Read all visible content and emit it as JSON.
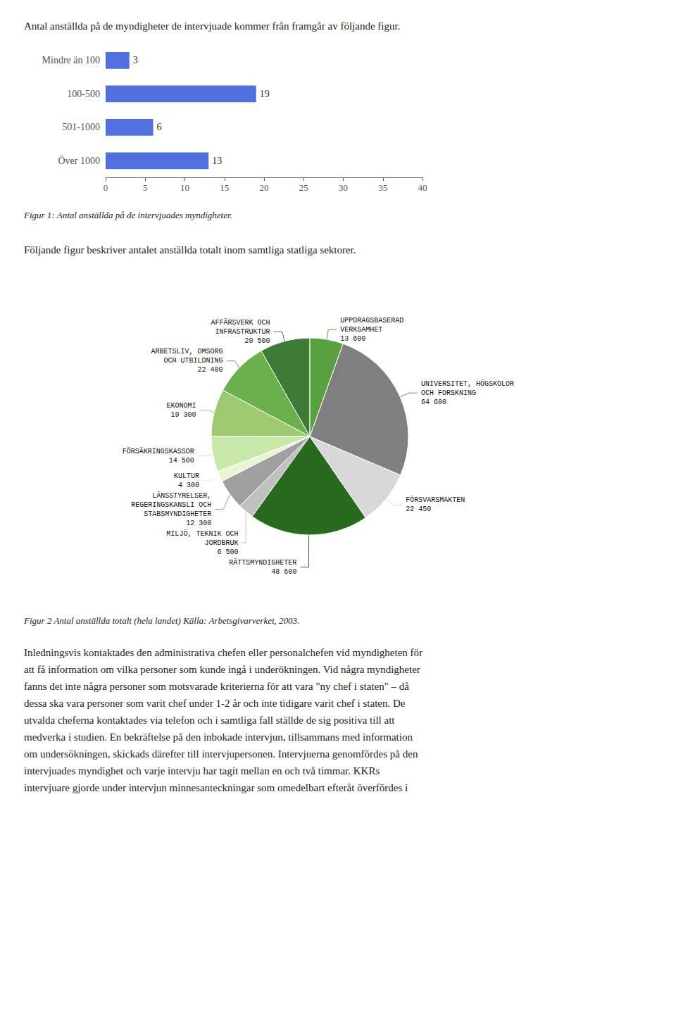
{
  "chart_data": [
    {
      "type": "bar",
      "orientation": "horizontal",
      "annotations": [
        "Antal anställda på de myndigheter de intervjuade kommer från framgår av följande figur.",
        "Figur 1: Antal anställda på de intervjuades myndigheter."
      ],
      "categories": [
        "Mindre än 100",
        "100-500",
        "501-1000",
        "Över 1000"
      ],
      "values": [
        3,
        19,
        6,
        13
      ],
      "xlim": [
        0,
        40
      ],
      "xticks": [
        0,
        5,
        10,
        15,
        20,
        25,
        30,
        35,
        40
      ],
      "data_labels": true,
      "grid": false
    },
    {
      "type": "pie",
      "annotations": [
        "Följande figur beskriver antalet anställda totalt inom samtliga statliga sektorer.",
        "Figur 2 Antal anställda totalt (hela landet) Källa: Arbetsgivarverket, 2003.",
        "Inledningsvis kontaktades den administrativa chefen eller personalchefen vid myndigheten för\natt få information om vilka personer som kunde ingå i underökningen. Vid några myndigheter\nfanns det inte några personer som motsvarade kriterierna för att vara \"ny chef i staten\" – då\ndessa ska vara personer som varit chef under 1-2 år och inte tidigare varit chef i staten. De\nutvalda cheferna kontaktades via telefon och i samtliga fall ställde de sig positiva till att\nmedverka i studien. En bekräftelse på den inbokade intervjun, tillsammans med information\nom undersökningen, skickads därefter till intervjupersonen. Intervjuerna genomfördes på den\nintervjuades myndighet och varje intervju har tagit mellan en och två timmar. KKRs\nintervjuare gjorde under intervjun minnesanteckningar som omedelbart efteråt överfördes i"
      ],
      "categories": [
        "AFFÄRSVERK OCH\nINFRASTRUKTUR",
        "ARBETSLIV, OMSORG\nOCH UTBILDNING",
        "EKONOMI",
        "FÖRSÄKRINGSKASSOR",
        "KULTUR",
        "LÄNSSTYRELSER,\nREGERINGSKANSLI OCH\nSTABSMYNDIGHETER",
        "MILJÖ, TEKNIK OCH\nJORDBRUK",
        "RÄTTSMYNDIGHETER",
        "FÖRSVARSMAKTEN",
        "UNIVERSITET, HÖGSKOLOR\nOCH FORSKNING",
        "UPPDRAGSBASERAD\nVERKSAMHET"
      ],
      "values": [
        20500,
        22400,
        19300,
        14500,
        4300,
        12300,
        6500,
        48600,
        22450,
        64600,
        13600
      ],
      "value_labels": [
        "20 500",
        "22 400",
        "19 300",
        "14 500",
        "4 300",
        "12 300",
        "6 500",
        "48 600",
        "22 450",
        "64 600",
        "13 600"
      ],
      "colors": [
        "#3d7a35",
        "#6ab04c",
        "#9dc970",
        "#c8e8a8",
        "#e8f5d0",
        "#a0a0a0",
        "#c0c0c0",
        "#2a6a20",
        "#d8d8d8",
        "#808080",
        "#58a040"
      ],
      "data_labels": true
    }
  ]
}
